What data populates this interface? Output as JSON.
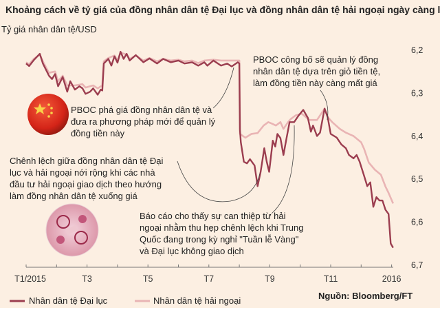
{
  "chart_data": {
    "type": "line",
    "title": "Khoảng cách về tỷ giá của đồng nhân dân tệ Đại lục và đồng nhân dân tệ hải ngoại ngày càng lớn",
    "ylabel": "Tỷ giá nhân dân tệ/USD",
    "xlabel": "",
    "x_unit": "months since Jan 2015",
    "xlim": [
      0,
      12.1
    ],
    "ylim": [
      6.2,
      6.7
    ],
    "y_inverted": true,
    "y_ticks": [
      "6,2",
      "6,3",
      "6,4",
      "6,5",
      "6,6",
      "6,7"
    ],
    "y_tick_values": [
      6.2,
      6.3,
      6.4,
      6.5,
      6.6,
      6.7
    ],
    "x_ticks": [
      "T1/2015",
      "T3",
      "T5",
      "T7",
      "T9",
      "T11",
      "2016"
    ],
    "x_tick_values": [
      0,
      2,
      4,
      6,
      8,
      10,
      12
    ],
    "grid": false,
    "legend_position": "bottom-left",
    "source": "Nguồn: Bloomberg/FT",
    "series": [
      {
        "name": "Nhân dân tệ Đại lục",
        "color": "#9b3d4f",
        "points": [
          [
            0,
            6.233
          ],
          [
            0.1,
            6.239
          ],
          [
            0.25,
            6.225
          ],
          [
            0.45,
            6.21
          ],
          [
            0.55,
            6.233
          ],
          [
            0.75,
            6.262
          ],
          [
            0.85,
            6.27
          ],
          [
            0.95,
            6.258
          ],
          [
            1.05,
            6.287
          ],
          [
            1.2,
            6.265
          ],
          [
            1.35,
            6.3
          ],
          [
            1.45,
            6.275
          ],
          [
            1.6,
            6.295
          ],
          [
            1.75,
            6.287
          ],
          [
            1.85,
            6.292
          ],
          [
            1.95,
            6.305
          ],
          [
            2.1,
            6.3
          ],
          [
            2.2,
            6.292
          ],
          [
            2.35,
            6.307
          ],
          [
            2.45,
            6.295
          ],
          [
            2.5,
            6.297
          ],
          [
            2.55,
            6.233
          ],
          [
            2.7,
            6.222
          ],
          [
            2.8,
            6.238
          ],
          [
            2.9,
            6.216
          ],
          [
            3.0,
            6.231
          ],
          [
            3.1,
            6.205
          ],
          [
            3.2,
            6.222
          ],
          [
            3.3,
            6.21
          ],
          [
            3.4,
            6.226
          ],
          [
            3.6,
            6.213
          ],
          [
            3.85,
            6.23
          ],
          [
            4.05,
            6.221
          ],
          [
            4.3,
            6.233
          ],
          [
            4.5,
            6.222
          ],
          [
            4.75,
            6.23
          ],
          [
            5.0,
            6.226
          ],
          [
            5.2,
            6.233
          ],
          [
            5.45,
            6.23
          ],
          [
            5.65,
            6.238
          ],
          [
            5.85,
            6.23
          ],
          [
            5.95,
            6.238
          ],
          [
            6.15,
            6.226
          ],
          [
            6.4,
            6.238
          ],
          [
            6.6,
            6.233
          ],
          [
            6.75,
            6.24
          ],
          [
            6.95,
            6.23
          ],
          [
            7.0,
            6.233
          ],
          [
            7.02,
            6.39
          ],
          [
            7.05,
            6.42
          ],
          [
            7.15,
            6.466
          ],
          [
            7.25,
            6.47
          ],
          [
            7.35,
            6.46
          ],
          [
            7.5,
            6.475
          ],
          [
            7.6,
            6.524
          ],
          [
            7.7,
            6.49
          ],
          [
            7.82,
            6.434
          ],
          [
            7.9,
            6.466
          ],
          [
            7.98,
            6.49
          ],
          [
            8.1,
            6.416
          ],
          [
            8.18,
            6.43
          ],
          [
            8.25,
            6.4
          ],
          [
            8.35,
            6.41
          ],
          [
            8.45,
            6.45
          ],
          [
            8.55,
            6.41
          ],
          [
            8.65,
            6.372
          ],
          [
            8.8,
            6.372
          ],
          [
            8.95,
            6.356
          ],
          [
            9.1,
            6.343
          ],
          [
            9.25,
            6.362
          ],
          [
            9.35,
            6.395
          ],
          [
            9.42,
            6.38
          ],
          [
            9.55,
            6.405
          ],
          [
            9.65,
            6.397
          ],
          [
            9.8,
            6.34
          ],
          [
            9.9,
            6.36
          ],
          [
            10.0,
            6.4
          ],
          [
            10.2,
            6.409
          ],
          [
            10.35,
            6.425
          ],
          [
            10.5,
            6.434
          ],
          [
            10.6,
            6.45
          ],
          [
            10.75,
            6.458
          ],
          [
            10.85,
            6.45
          ],
          [
            10.95,
            6.466
          ],
          [
            11.1,
            6.5
          ],
          [
            11.2,
            6.524
          ],
          [
            11.3,
            6.515
          ],
          [
            11.4,
            6.573
          ],
          [
            11.5,
            6.55
          ],
          [
            11.6,
            6.558
          ],
          [
            11.7,
            6.558
          ],
          [
            11.8,
            6.58
          ],
          [
            11.9,
            6.59
          ],
          [
            11.97,
            6.66
          ],
          [
            12.05,
            6.67
          ]
        ]
      },
      {
        "name": "Nhân dân tệ hải ngoại",
        "color": "#e9b4b4",
        "points": [
          [
            0,
            6.23
          ],
          [
            0.1,
            6.235
          ],
          [
            0.25,
            6.222
          ],
          [
            0.45,
            6.212
          ],
          [
            0.55,
            6.228
          ],
          [
            0.75,
            6.255
          ],
          [
            0.95,
            6.252
          ],
          [
            1.05,
            6.275
          ],
          [
            1.2,
            6.262
          ],
          [
            1.35,
            6.285
          ],
          [
            1.6,
            6.285
          ],
          [
            1.85,
            6.282
          ],
          [
            1.95,
            6.29
          ],
          [
            2.2,
            6.285
          ],
          [
            2.35,
            6.292
          ],
          [
            2.5,
            6.285
          ],
          [
            2.55,
            6.228
          ],
          [
            2.7,
            6.22
          ],
          [
            2.9,
            6.214
          ],
          [
            3.0,
            6.226
          ],
          [
            3.1,
            6.207
          ],
          [
            3.3,
            6.212
          ],
          [
            3.4,
            6.222
          ],
          [
            3.6,
            6.214
          ],
          [
            3.85,
            6.226
          ],
          [
            4.05,
            6.22
          ],
          [
            4.3,
            6.228
          ],
          [
            4.5,
            6.222
          ],
          [
            4.75,
            6.226
          ],
          [
            5.0,
            6.224
          ],
          [
            5.2,
            6.228
          ],
          [
            5.45,
            6.226
          ],
          [
            5.65,
            6.232
          ],
          [
            5.85,
            6.226
          ],
          [
            6.15,
            6.224
          ],
          [
            6.4,
            6.226
          ],
          [
            6.6,
            6.226
          ],
          [
            6.8,
            6.226
          ],
          [
            7.0,
            6.226
          ],
          [
            7.02,
            6.4
          ],
          [
            7.2,
            6.409
          ],
          [
            7.4,
            6.4
          ],
          [
            7.6,
            6.398
          ],
          [
            7.8,
            6.38
          ],
          [
            7.95,
            6.372
          ],
          [
            8.05,
            6.375
          ],
          [
            8.2,
            6.38
          ],
          [
            8.35,
            6.372
          ],
          [
            8.45,
            6.388
          ],
          [
            8.6,
            6.372
          ],
          [
            8.7,
            6.364
          ],
          [
            8.85,
            6.356
          ],
          [
            9.05,
            6.352
          ],
          [
            9.3,
            6.367
          ],
          [
            9.55,
            6.367
          ],
          [
            9.8,
            6.34
          ],
          [
            9.9,
            6.36
          ],
          [
            10.05,
            6.372
          ],
          [
            10.3,
            6.388
          ],
          [
            10.5,
            6.397
          ],
          [
            10.75,
            6.405
          ],
          [
            11.0,
            6.42
          ],
          [
            11.1,
            6.436
          ],
          [
            11.25,
            6.468
          ],
          [
            11.45,
            6.485
          ],
          [
            11.65,
            6.497
          ],
          [
            11.8,
            6.525
          ],
          [
            11.9,
            6.54
          ],
          [
            12.05,
            6.565
          ]
        ]
      }
    ],
    "annotations": [
      {
        "lines": [
          "PBOC công bố sẽ quản lý đồng",
          "nhân dân tệ dựa trên giỏ tiền tệ,",
          "làm đồng tiền này càng mất giá"
        ]
      },
      {
        "lines": [
          "PBOC phá giá đồng nhân dân tệ và",
          "đưa ra phương pháp mới để quản lý",
          "đồng tiền này"
        ]
      },
      {
        "lines": [
          "Chênh lệch giữa đồng nhân dân tệ Đại",
          "lục và hải ngoại nới rộng khi các nhà",
          "đầu tư hải ngoại giao dịch theo hướng",
          "làm đồng nhân dân tệ xuống giá"
        ]
      },
      {
        "lines": [
          "Báo cáo cho thấy sự can thiệp từ hải",
          "ngoại nhằm thu hẹp chênh lệch khi Trung",
          "Quốc đang trong kỳ nghỉ \"Tuần lễ Vàng\"",
          "và Đại lục không giao dịch"
        ]
      }
    ]
  }
}
